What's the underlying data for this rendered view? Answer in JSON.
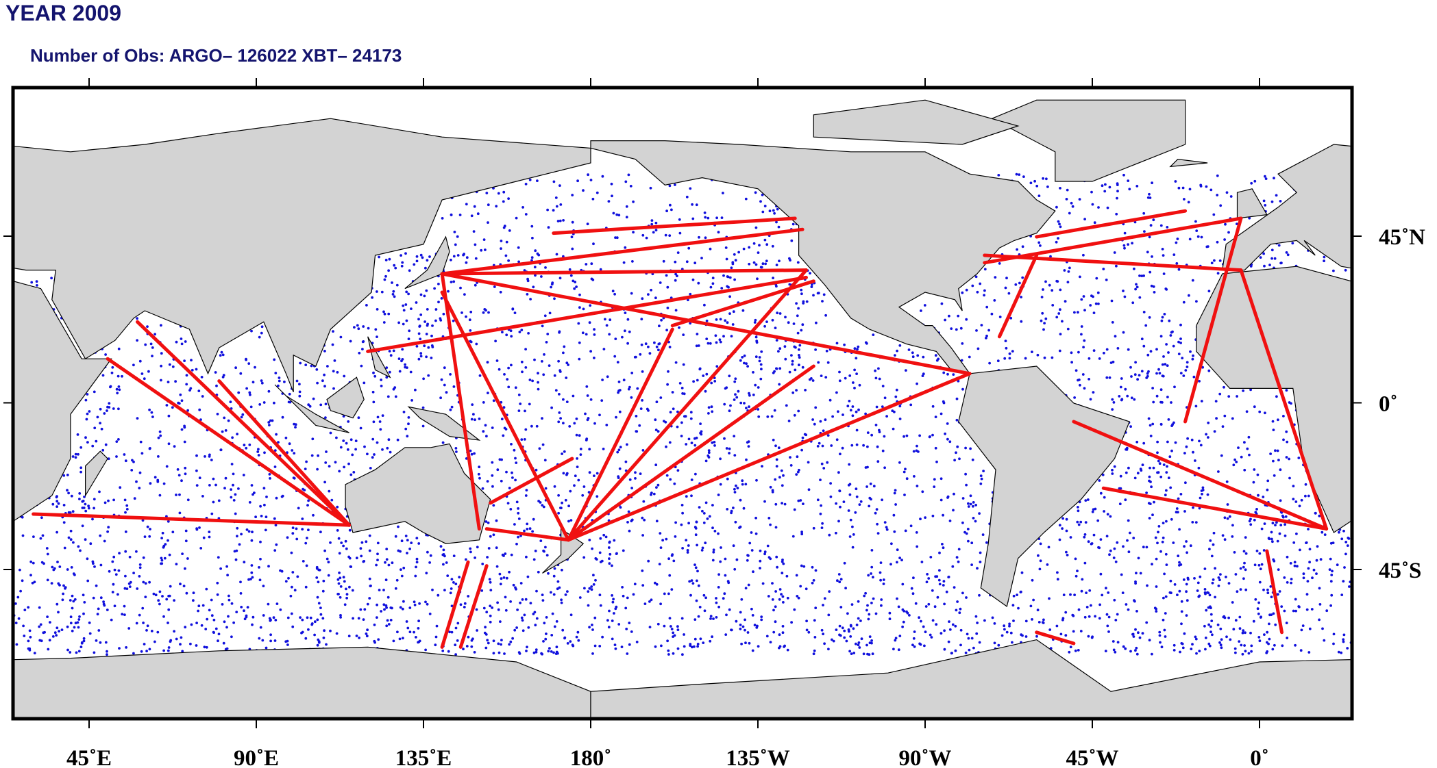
{
  "header": {
    "title": "YEAR 2009",
    "subtitle": "Number of Obs: ARGO– 126022 XBT– 24173"
  },
  "map": {
    "x_labels": [
      "45˚E",
      "90˚E",
      "135˚E",
      "180˚",
      "135˚W",
      "90˚W",
      "45˚W",
      "0˚"
    ],
    "y_labels": [
      "45˚N",
      "0˚",
      "45˚S"
    ]
  }
}
